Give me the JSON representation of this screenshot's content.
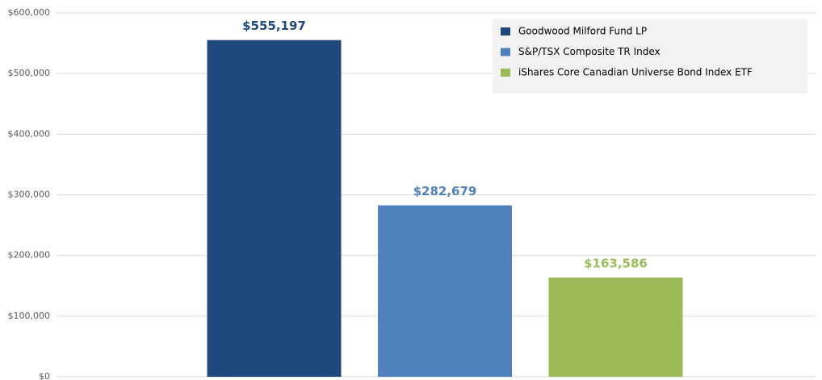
{
  "chart_data": {
    "type": "bar",
    "categories": [
      null
    ],
    "series": [
      {
        "name": "Goodwood Milford Fund LP",
        "color": "#1f497d",
        "values": [
          555197
        ],
        "value_labels": [
          "$555,197"
        ]
      },
      {
        "name": "S&P/TSX Composite TR Index",
        "color": "#4f81bd",
        "values": [
          282679
        ],
        "value_labels": [
          "$282,679"
        ]
      },
      {
        "name": "iShares Core Canadian Universe Bond Index ETF",
        "color": "#9bbb59",
        "values": [
          163586
        ],
        "value_labels": [
          "$163,586"
        ]
      }
    ],
    "ylim": [
      0,
      600000
    ],
    "yticks": [
      {
        "value": 0,
        "label": "$0"
      },
      {
        "value": 100000,
        "label": "$100,000"
      },
      {
        "value": 200000,
        "label": "$200,000"
      },
      {
        "value": 300000,
        "label": "$300,000"
      },
      {
        "value": 400000,
        "label": "$400,000"
      },
      {
        "value": 500000,
        "label": "$500,000"
      },
      {
        "value": 600000,
        "label": "$600,000"
      }
    ],
    "grid": true,
    "legend": "top-right"
  }
}
